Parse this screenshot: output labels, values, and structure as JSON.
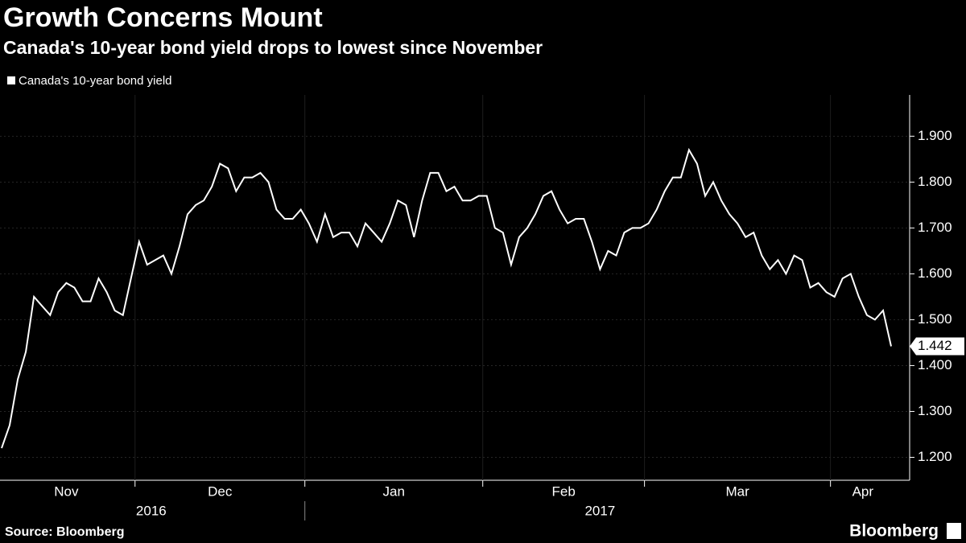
{
  "chart_data": {
    "type": "line",
    "title": "Growth Concerns Mount",
    "subtitle": "Canada's 10-year bond yield drops to lowest since November",
    "source": "Source: Bloomberg",
    "brand": "Bloomberg",
    "categories": [
      "Nov",
      "Nov",
      "Nov",
      "Nov",
      "Nov",
      "Nov",
      "Nov",
      "Nov",
      "Nov",
      "Nov",
      "Nov",
      "Nov",
      "Nov",
      "Nov",
      "Nov",
      "Nov",
      "Nov",
      "Dec",
      "Dec",
      "Dec",
      "Dec",
      "Dec",
      "Dec",
      "Dec",
      "Dec",
      "Dec",
      "Dec",
      "Dec",
      "Dec",
      "Dec",
      "Dec",
      "Dec",
      "Dec",
      "Dec",
      "Dec",
      "Dec",
      "Dec",
      "Dec",
      "Jan",
      "Jan",
      "Jan",
      "Jan",
      "Jan",
      "Jan",
      "Jan",
      "Jan",
      "Jan",
      "Jan",
      "Jan",
      "Jan",
      "Jan",
      "Jan",
      "Jan",
      "Jan",
      "Jan",
      "Jan",
      "Jan",
      "Jan",
      "Jan",
      "Jan",
      "Feb",
      "Feb",
      "Feb",
      "Feb",
      "Feb",
      "Feb",
      "Feb",
      "Feb",
      "Feb",
      "Feb",
      "Feb",
      "Feb",
      "Feb",
      "Feb",
      "Feb",
      "Feb",
      "Feb",
      "Feb",
      "Feb",
      "Feb",
      "Mar",
      "Mar",
      "Mar",
      "Mar",
      "Mar",
      "Mar",
      "Mar",
      "Mar",
      "Mar",
      "Mar",
      "Mar",
      "Mar",
      "Mar",
      "Mar",
      "Mar",
      "Mar",
      "Mar",
      "Mar",
      "Mar",
      "Mar",
      "Mar",
      "Mar",
      "Mar",
      "Apr",
      "Apr",
      "Apr",
      "Apr",
      "Apr",
      "Apr",
      "Apr",
      "Apr"
    ],
    "years": [
      "2016",
      "2016",
      "2016",
      "2016",
      "2016",
      "2016",
      "2016",
      "2016",
      "2016",
      "2016",
      "2016",
      "2016",
      "2016",
      "2016",
      "2016",
      "2016",
      "2016",
      "2016",
      "2016",
      "2016",
      "2016",
      "2016",
      "2016",
      "2016",
      "2016",
      "2016",
      "2016",
      "2016",
      "2016",
      "2016",
      "2016",
      "2016",
      "2016",
      "2016",
      "2016",
      "2016",
      "2016",
      "2016",
      "2017",
      "2017",
      "2017",
      "2017",
      "2017",
      "2017",
      "2017",
      "2017",
      "2017",
      "2017",
      "2017",
      "2017",
      "2017",
      "2017",
      "2017",
      "2017",
      "2017",
      "2017",
      "2017",
      "2017",
      "2017",
      "2017",
      "2017",
      "2017",
      "2017",
      "2017",
      "2017",
      "2017",
      "2017",
      "2017",
      "2017",
      "2017",
      "2017",
      "2017",
      "2017",
      "2017",
      "2017",
      "2017",
      "2017",
      "2017",
      "2017",
      "2017",
      "2017",
      "2017",
      "2017",
      "2017",
      "2017",
      "2017",
      "2017",
      "2017",
      "2017",
      "2017",
      "2017",
      "2017",
      "2017",
      "2017",
      "2017",
      "2017",
      "2017",
      "2017",
      "2017",
      "2017",
      "2017",
      "2017",
      "2017",
      "2017",
      "2017",
      "2017",
      "2017",
      "2017",
      "2017",
      "2017",
      "2017"
    ],
    "series": [
      {
        "name": "Canada's 10-year bond yield",
        "color": "#ffffff",
        "values": [
          1.22,
          1.27,
          1.37,
          1.43,
          1.55,
          1.53,
          1.51,
          1.56,
          1.58,
          1.57,
          1.54,
          1.54,
          1.59,
          1.56,
          1.52,
          1.51,
          1.59,
          1.67,
          1.62,
          1.63,
          1.64,
          1.6,
          1.66,
          1.73,
          1.75,
          1.76,
          1.79,
          1.84,
          1.83,
          1.78,
          1.81,
          1.81,
          1.82,
          1.8,
          1.74,
          1.72,
          1.72,
          1.74,
          1.71,
          1.67,
          1.73,
          1.68,
          1.69,
          1.69,
          1.66,
          1.71,
          1.69,
          1.67,
          1.71,
          1.76,
          1.75,
          1.68,
          1.76,
          1.82,
          1.82,
          1.78,
          1.79,
          1.76,
          1.76,
          1.77,
          1.77,
          1.7,
          1.69,
          1.62,
          1.68,
          1.7,
          1.73,
          1.77,
          1.78,
          1.74,
          1.71,
          1.72,
          1.72,
          1.67,
          1.61,
          1.65,
          1.64,
          1.69,
          1.7,
          1.7,
          1.71,
          1.74,
          1.78,
          1.81,
          1.81,
          1.87,
          1.84,
          1.77,
          1.8,
          1.76,
          1.73,
          1.71,
          1.68,
          1.69,
          1.64,
          1.61,
          1.63,
          1.6,
          1.64,
          1.63,
          1.57,
          1.58,
          1.56,
          1.55,
          1.59,
          1.6,
          1.55,
          1.51,
          1.5,
          1.52,
          1.442
        ]
      }
    ],
    "ylim": [
      1.15,
      1.99
    ],
    "yticks": [
      {
        "value": 1.2,
        "label": "1.200"
      },
      {
        "value": 1.3,
        "label": "1.300"
      },
      {
        "value": 1.4,
        "label": "1.400"
      },
      {
        "value": 1.5,
        "label": "1.500"
      },
      {
        "value": 1.6,
        "label": "1.600"
      },
      {
        "value": 1.7,
        "label": "1.700"
      },
      {
        "value": 1.8,
        "label": "1.800"
      },
      {
        "value": 1.9,
        "label": "1.900"
      }
    ],
    "grid": true
  }
}
